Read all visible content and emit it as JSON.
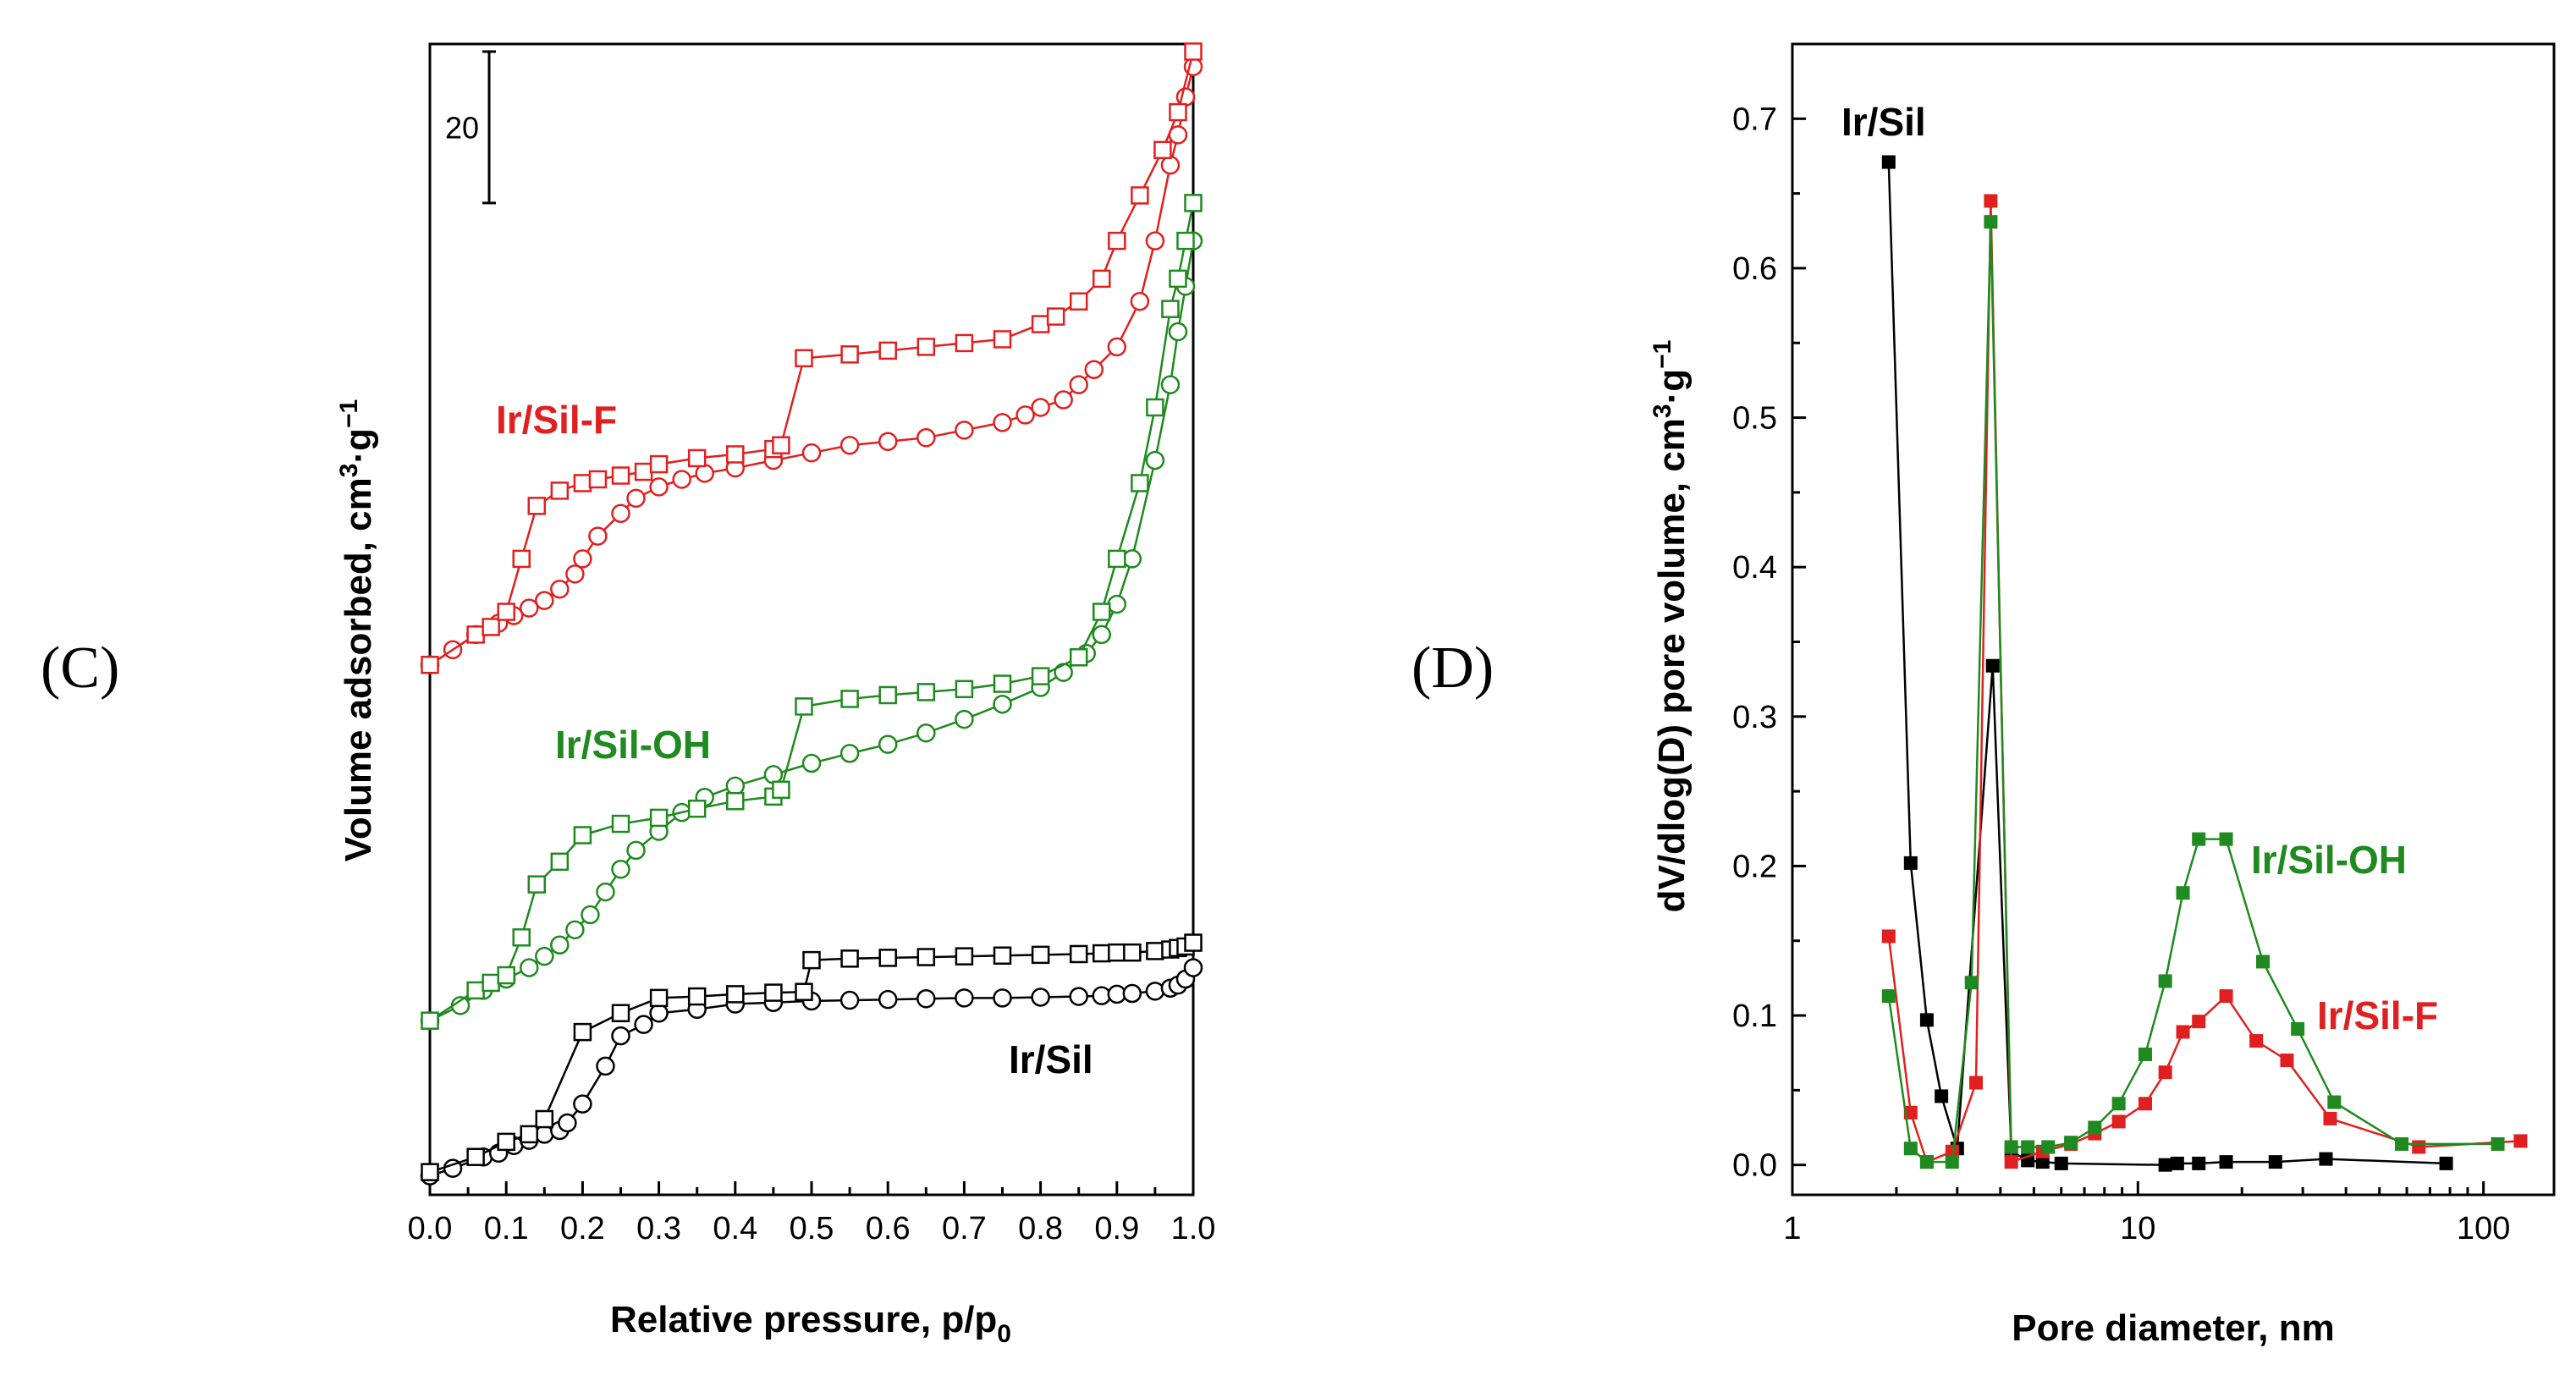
{
  "panels": {
    "C": "(C)",
    "D": "(D)"
  },
  "chart_data": [
    {
      "type": "scatter",
      "panel": "(C)",
      "xlabel_main": "Relative pressure, p/p",
      "xlabel_sub": "0",
      "ylabel_main": "Volume adsorbed, cm",
      "ylabel_sup1": "3",
      "ylabel_mid": "·g",
      "ylabel_sup2": "−1",
      "xlim": [
        0,
        1
      ],
      "ylim": [
        -2,
        150
      ],
      "y_ticks_shown": false,
      "x_ticks": [
        "0.0",
        "0.1",
        "0.2",
        "0.3",
        "0.4",
        "0.5",
        "0.6",
        "0.7",
        "0.8",
        "0.9",
        "1.0"
      ],
      "scale_bar": {
        "label": "20",
        "value": 20
      },
      "series": [
        {
          "name": "Ir/Sil",
          "color": "#000000",
          "adsorption": {
            "x": [
              0.0,
              0.03,
              0.07,
              0.09,
              0.11,
              0.13,
              0.15,
              0.17,
              0.18,
              0.2,
              0.23,
              0.25,
              0.28,
              0.3,
              0.35,
              0.4,
              0.45,
              0.5,
              0.55,
              0.6,
              0.65,
              0.7,
              0.75,
              0.8,
              0.85,
              0.88,
              0.9,
              0.92,
              0.95,
              0.97,
              0.98,
              0.99,
              1.0
            ],
            "y": [
              0.5,
              1.5,
              3,
              3.5,
              4.5,
              5.2,
              6,
              6.5,
              7.5,
              10,
              15,
              19,
              20.5,
              22,
              22.5,
              23.2,
              23.4,
              23.6,
              23.7,
              23.8,
              23.9,
              24,
              24,
              24.1,
              24.2,
              24.3,
              24.5,
              24.6,
              24.9,
              25.3,
              25.7,
              26.5,
              28
            ]
          },
          "desorption": {
            "x": [
              0.0,
              0.06,
              0.1,
              0.13,
              0.15,
              0.2,
              0.25,
              0.3,
              0.35,
              0.4,
              0.45,
              0.49,
              0.5,
              0.55,
              0.6,
              0.65,
              0.7,
              0.75,
              0.8,
              0.85,
              0.88,
              0.9,
              0.92,
              0.95,
              0.97,
              0.98,
              0.99,
              1.0
            ],
            "y": [
              1,
              3,
              5,
              6,
              8,
              19.5,
              22,
              24,
              24.2,
              24.5,
              24.7,
              24.8,
              29,
              29.2,
              29.3,
              29.4,
              29.5,
              29.6,
              29.7,
              29.8,
              29.9,
              30,
              30,
              30.2,
              30.4,
              30.6,
              30.8,
              31.3
            ]
          }
        },
        {
          "name": "Ir/Sil-OH",
          "color": "#1f8a1f",
          "adsorption": {
            "x": [
              0.0,
              0.04,
              0.07,
              0.1,
              0.13,
              0.15,
              0.17,
              0.19,
              0.21,
              0.23,
              0.25,
              0.27,
              0.3,
              0.33,
              0.36,
              0.4,
              0.45,
              0.5,
              0.55,
              0.6,
              0.65,
              0.7,
              0.75,
              0.8,
              0.83,
              0.86,
              0.88,
              0.9,
              0.92,
              0.95,
              0.97,
              0.98,
              0.99,
              1.0
            ],
            "y": [
              21,
              23,
              25,
              26.5,
              28,
              29.5,
              31,
              33,
              35,
              38,
              41,
              43.5,
              46,
              48.5,
              50.5,
              52,
              53.5,
              55,
              56.3,
              57.5,
              59,
              60.8,
              62.8,
              65,
              67,
              69.5,
              72,
              76,
              82,
              95,
              105,
              112,
              118,
              124
            ]
          },
          "desorption": {
            "x": [
              0.0,
              0.06,
              0.08,
              0.1,
              0.12,
              0.14,
              0.17,
              0.2,
              0.25,
              0.3,
              0.35,
              0.4,
              0.45,
              0.46,
              0.49,
              0.55,
              0.6,
              0.65,
              0.7,
              0.75,
              0.8,
              0.85,
              0.88,
              0.9,
              0.93,
              0.95,
              0.97,
              0.98,
              0.99,
              1.0
            ],
            "y": [
              21,
              25,
              26,
              27,
              32,
              39,
              42,
              45.5,
              47,
              47.8,
              49,
              50,
              50.6,
              51.5,
              62.5,
              63.5,
              64,
              64.4,
              64.8,
              65.5,
              66.5,
              69,
              75,
              82,
              92,
              102,
              115,
              119,
              124,
              129
            ]
          }
        },
        {
          "name": "Ir/Sil-F",
          "color": "#e02020",
          "adsorption": {
            "x": [
              0.0,
              0.03,
              0.06,
              0.09,
              0.11,
              0.13,
              0.15,
              0.17,
              0.19,
              0.2,
              0.22,
              0.25,
              0.27,
              0.3,
              0.33,
              0.36,
              0.4,
              0.45,
              0.5,
              0.55,
              0.6,
              0.65,
              0.7,
              0.75,
              0.78,
              0.8,
              0.83,
              0.85,
              0.87,
              0.9,
              0.93,
              0.95,
              0.97,
              0.98,
              0.99,
              1.0
            ],
            "y": [
              68,
              70,
              72,
              73.5,
              74.5,
              75.5,
              76.5,
              78,
              80,
              82,
              85,
              88,
              90,
              91.5,
              92.5,
              93.3,
              94,
              95,
              96,
              97,
              97.5,
              98,
              99,
              100,
              101,
              102,
              103,
              105,
              107,
              110,
              116,
              124,
              134,
              138,
              143,
              147
            ]
          },
          "desorption": {
            "x": [
              0.0,
              0.06,
              0.08,
              0.1,
              0.12,
              0.14,
              0.17,
              0.2,
              0.22,
              0.25,
              0.28,
              0.3,
              0.35,
              0.4,
              0.45,
              0.46,
              0.49,
              0.55,
              0.6,
              0.65,
              0.7,
              0.75,
              0.8,
              0.82,
              0.85,
              0.88,
              0.9,
              0.93,
              0.96,
              0.98,
              1.0
            ],
            "y": [
              68,
              72,
              73,
              75,
              82,
              89,
              91,
              92,
              92.5,
              93,
              93.5,
              94.5,
              95.3,
              95.8,
              96.5,
              97,
              108.5,
              109,
              109.5,
              110,
              110.5,
              111,
              113,
              114,
              116,
              119,
              124,
              130,
              136,
              141,
              149
            ]
          }
        }
      ],
      "annotations": [
        "Ir/Sil-F",
        "Ir/Sil-OH",
        "Ir/Sil"
      ]
    },
    {
      "type": "line",
      "panel": "(D)",
      "xlabel": "Pore diameter, nm",
      "ylabel_main": "dV/dlog(D) pore volume, cm",
      "ylabel_sup1": "3",
      "ylabel_mid": "·g",
      "ylabel_sup2": "−1",
      "xscale": "log",
      "xlim": [
        1,
        160
      ],
      "ylim": [
        -0.02,
        0.75
      ],
      "x_ticks": [
        {
          "value": 1,
          "label": "1"
        },
        {
          "value": 10,
          "label": "10"
        },
        {
          "value": 100,
          "label": "100"
        }
      ],
      "y_ticks": [
        "0.0",
        "0.1",
        "0.2",
        "0.3",
        "0.4",
        "0.5",
        "0.6",
        "0.7"
      ],
      "series": [
        {
          "name": "Ir/Sil",
          "color": "#000000",
          "x": [
            1.9,
            2.2,
            2.45,
            2.7,
            3.0,
            3.8,
            4.3,
            4.8,
            5.3,
            6.0,
            12,
            13,
            15,
            18,
            25,
            35,
            78
          ],
          "y": [
            0.671,
            0.202,
            0.097,
            0.046,
            0.011,
            0.334,
            0.009,
            0.003,
            0.002,
            0.001,
            0.0,
            0.001,
            0.001,
            0.002,
            0.002,
            0.004,
            0.001
          ]
        },
        {
          "name": "Ir/Sil-OH",
          "color": "#1f8a1f",
          "x": [
            1.9,
            2.2,
            2.45,
            2.9,
            3.3,
            3.75,
            4.3,
            4.8,
            5.5,
            6.4,
            7.5,
            8.8,
            10.5,
            12,
            13.5,
            15,
            18,
            23,
            29,
            37,
            58,
            110
          ],
          "y": [
            0.113,
            0.011,
            0.002,
            0.002,
            0.122,
            0.631,
            0.012,
            0.012,
            0.012,
            0.015,
            0.025,
            0.041,
            0.074,
            0.123,
            0.182,
            0.218,
            0.218,
            0.136,
            0.091,
            0.042,
            0.014,
            0.014
          ]
        },
        {
          "name": "Ir/Sil-F",
          "color": "#e02020",
          "x": [
            1.9,
            2.2,
            2.45,
            2.9,
            3.4,
            3.75,
            4.3,
            5.3,
            6.4,
            7.5,
            8.8,
            10.5,
            12,
            13.5,
            15,
            18,
            22,
            27,
            36,
            65,
            128
          ],
          "y": [
            0.153,
            0.035,
            0.002,
            0.009,
            0.055,
            0.645,
            0.002,
            0.009,
            0.014,
            0.021,
            0.029,
            0.041,
            0.062,
            0.089,
            0.096,
            0.113,
            0.083,
            0.07,
            0.031,
            0.012,
            0.016
          ]
        }
      ],
      "annotations": [
        "Ir/Sil",
        "Ir/Sil-OH",
        "Ir/Sil-F"
      ]
    }
  ]
}
